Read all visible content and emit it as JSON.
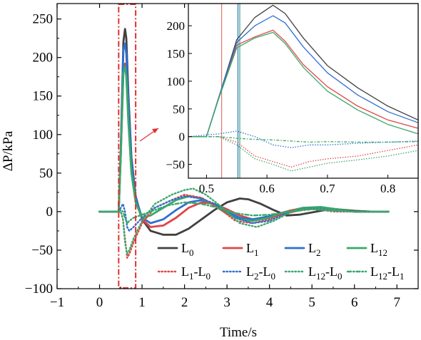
{
  "chart_data": {
    "type": "line",
    "xlabel": "Time/s",
    "ylabel": "ΔP/kPa",
    "xlim": [
      -1,
      7.5
    ],
    "ylim": [
      -100,
      270
    ],
    "xticks": [
      -1,
      0,
      1,
      2,
      3,
      4,
      5,
      6,
      7
    ],
    "yticks": [
      -100,
      -50,
      0,
      50,
      100,
      150,
      200,
      250
    ],
    "grid": false,
    "legend_position": "bottom-right",
    "highlight_region": {
      "x": [
        0.45,
        0.85
      ],
      "style": "dash-dot",
      "color": "#e03030"
    },
    "series": [
      {
        "name": "L0",
        "name_base": "L",
        "name_sub": "0",
        "color": "#404040",
        "style": "solid",
        "x": [
          0,
          0.45,
          0.5,
          0.56,
          0.6,
          0.63,
          0.68,
          0.75,
          0.85,
          1.0,
          1.2,
          1.5,
          1.8,
          2.1,
          2.4,
          2.7,
          3.0,
          3.3,
          3.5,
          3.8,
          4.1,
          4.4,
          4.7,
          5.0,
          5.3,
          5.6,
          6.0,
          6.4,
          6.8
        ],
        "y": [
          0,
          0,
          80,
          220,
          237,
          225,
          150,
          70,
          20,
          -10,
          -25,
          -30,
          -30,
          -22,
          -10,
          2,
          12,
          17,
          16,
          10,
          2,
          -5,
          -4,
          -1,
          2,
          3,
          1,
          0,
          0
        ]
      },
      {
        "name": "L1",
        "name_base": "L",
        "name_sub": "1",
        "color": "#e04545",
        "style": "solid",
        "x": [
          0,
          0.45,
          0.5,
          0.56,
          0.6,
          0.63,
          0.68,
          0.75,
          0.85,
          1.0,
          1.2,
          1.5,
          1.8,
          2.1,
          2.4,
          2.7,
          3.0,
          3.3,
          3.6,
          4.0,
          4.4,
          4.8,
          5.2,
          5.6,
          6.0,
          6.4,
          6.8
        ],
        "y": [
          0,
          0,
          75,
          185,
          192,
          180,
          120,
          55,
          15,
          -10,
          -20,
          -18,
          -8,
          5,
          12,
          10,
          3,
          -5,
          -10,
          -8,
          -2,
          3,
          4,
          2,
          0,
          0,
          0
        ]
      },
      {
        "name": "L2",
        "name_base": "L",
        "name_sub": "2",
        "color": "#2f6fd0",
        "style": "solid",
        "x": [
          0,
          0.45,
          0.5,
          0.56,
          0.6,
          0.63,
          0.68,
          0.75,
          0.85,
          1.0,
          1.2,
          1.5,
          1.8,
          2.1,
          2.4,
          2.7,
          3.0,
          3.3,
          3.6,
          4.0,
          4.4,
          4.8,
          5.2,
          5.6,
          6.0,
          6.4,
          6.8
        ],
        "y": [
          0,
          0,
          80,
          210,
          218,
          205,
          140,
          65,
          18,
          -8,
          -15,
          -10,
          2,
          12,
          15,
          10,
          0,
          -8,
          -10,
          -6,
          0,
          5,
          5,
          2,
          0,
          0,
          0
        ]
      },
      {
        "name": "L12",
        "name_base": "L",
        "name_sub": "12",
        "color": "#3aa86a",
        "style": "solid",
        "x": [
          0,
          0.45,
          0.5,
          0.56,
          0.6,
          0.63,
          0.68,
          0.75,
          0.85,
          1.0,
          1.2,
          1.5,
          1.8,
          2.1,
          2.4,
          2.7,
          3.0,
          3.3,
          3.6,
          4.0,
          4.4,
          4.8,
          5.2,
          5.6,
          6.0,
          6.4,
          6.8
        ],
        "y": [
          0,
          0,
          75,
          180,
          188,
          175,
          115,
          50,
          12,
          -8,
          -5,
          5,
          15,
          20,
          17,
          8,
          -3,
          -10,
          -12,
          -8,
          0,
          5,
          6,
          3,
          0,
          0,
          0
        ]
      },
      {
        "name": "L1-L0",
        "name_base": "L",
        "name_sub": "1",
        "name_base2": "-L",
        "name_sub2": "0",
        "color": "#e04545",
        "style": "dotted",
        "x": [
          0,
          0.45,
          0.5,
          0.55,
          0.6,
          0.65,
          0.7,
          0.8,
          1.0,
          1.3,
          1.7,
          2.0,
          2.4,
          2.8,
          3.2,
          3.6,
          4.0,
          4.5,
          5.0,
          5.5,
          6.0,
          6.5,
          6.8
        ],
        "y": [
          0,
          0,
          0,
          -10,
          -35,
          -60,
          -55,
          -40,
          -15,
          5,
          15,
          22,
          18,
          5,
          -12,
          -15,
          -10,
          2,
          4,
          0,
          0,
          0,
          0
        ]
      },
      {
        "name": "L2-L0",
        "name_base": "L",
        "name_sub": "2",
        "name_base2": "-L",
        "name_sub2": "0",
        "color": "#2f6fd0",
        "style": "dotted",
        "x": [
          0,
          0.45,
          0.5,
          0.55,
          0.6,
          0.65,
          0.7,
          0.8,
          1.0,
          1.3,
          1.7,
          2.0,
          2.4,
          2.8,
          3.2,
          3.6,
          4.0,
          4.5,
          5.0,
          5.5,
          6.0,
          6.5,
          6.8
        ],
        "y": [
          0,
          0,
          5,
          10,
          0,
          -20,
          -25,
          -20,
          -8,
          5,
          15,
          20,
          17,
          8,
          -8,
          -15,
          -12,
          0,
          5,
          2,
          0,
          0,
          0
        ]
      },
      {
        "name": "L12-L0",
        "name_base": "L",
        "name_sub": "12",
        "name_base2": "-L",
        "name_sub2": "0",
        "color": "#3aa86a",
        "style": "dotted",
        "x": [
          0,
          0.45,
          0.5,
          0.55,
          0.6,
          0.65,
          0.7,
          0.8,
          1.0,
          1.3,
          1.7,
          2.0,
          2.2,
          2.5,
          2.9,
          3.3,
          3.7,
          4.1,
          4.6,
          5.0,
          5.5,
          6.0,
          6.5,
          6.8
        ],
        "y": [
          0,
          0,
          0,
          -10,
          -40,
          -55,
          -50,
          -35,
          -12,
          10,
          22,
          28,
          30,
          22,
          5,
          -15,
          -20,
          -12,
          2,
          5,
          2,
          0,
          0,
          0
        ]
      },
      {
        "name": "L12-L1",
        "name_base": "L",
        "name_sub": "12",
        "name_base2": "-L",
        "name_sub2": "1",
        "color": "#3aa86a",
        "style": "dashdot",
        "x": [
          0,
          0.45,
          0.5,
          0.55,
          0.6,
          0.65,
          0.7,
          0.8,
          1.0,
          1.3,
          1.6,
          2.0,
          2.4,
          2.8,
          3.2,
          3.6,
          4.0,
          4.5,
          5.0,
          5.5,
          6.0,
          6.5,
          6.8
        ],
        "y": [
          0,
          0,
          2,
          0,
          -8,
          -15,
          -12,
          -8,
          -4,
          2,
          8,
          12,
          10,
          5,
          -2,
          -5,
          -4,
          0,
          3,
          1,
          0,
          0,
          0
        ]
      }
    ],
    "inset": {
      "xlim": [
        0.47,
        0.85
      ],
      "ylim": [
        -75,
        240
      ],
      "xticks": [
        0.5,
        0.6,
        0.7,
        0.8
      ],
      "xtick_labels": [
        "0.5",
        "0.6",
        "0.7",
        "0.8"
      ],
      "yticks": [
        -50,
        0,
        50,
        100,
        150,
        200
      ],
      "vlines": [
        {
          "x": 0.525,
          "color": "#e07a6a"
        },
        {
          "x": 0.552,
          "color": "#2f6fd0"
        },
        {
          "x": 0.555,
          "color": "#3aa86a"
        }
      ],
      "series": [
        {
          "name": "L0",
          "color": "#404040",
          "style": "solid",
          "x": [
            0.47,
            0.5,
            0.52,
            0.55,
            0.58,
            0.61,
            0.63,
            0.66,
            0.7,
            0.75,
            0.8,
            0.85
          ],
          "y": [
            0,
            0,
            70,
            175,
            215,
            237,
            222,
            178,
            128,
            88,
            55,
            30
          ]
        },
        {
          "name": "L1",
          "color": "#e04545",
          "style": "solid",
          "x": [
            0.47,
            0.5,
            0.52,
            0.55,
            0.58,
            0.61,
            0.63,
            0.66,
            0.7,
            0.75,
            0.8,
            0.85
          ],
          "y": [
            0,
            0,
            70,
            165,
            180,
            192,
            172,
            130,
            90,
            55,
            30,
            15
          ]
        },
        {
          "name": "L2",
          "color": "#2f6fd0",
          "style": "solid",
          "x": [
            0.47,
            0.5,
            0.52,
            0.55,
            0.58,
            0.61,
            0.63,
            0.66,
            0.7,
            0.75,
            0.8,
            0.85
          ],
          "y": [
            0,
            0,
            70,
            170,
            200,
            218,
            205,
            162,
            115,
            75,
            45,
            25
          ]
        },
        {
          "name": "L12",
          "color": "#3aa86a",
          "style": "solid",
          "x": [
            0.47,
            0.5,
            0.52,
            0.55,
            0.58,
            0.61,
            0.63,
            0.66,
            0.7,
            0.75,
            0.8,
            0.85
          ],
          "y": [
            0,
            0,
            68,
            160,
            178,
            188,
            168,
            125,
            82,
            48,
            22,
            5
          ]
        },
        {
          "name": "L1-L0",
          "color": "#e04545",
          "style": "dotted",
          "x": [
            0.47,
            0.52,
            0.55,
            0.58,
            0.61,
            0.64,
            0.67,
            0.7,
            0.75,
            0.8,
            0.85
          ],
          "y": [
            0,
            0,
            -10,
            -35,
            -45,
            -55,
            -45,
            -40,
            -35,
            -25,
            -15
          ]
        },
        {
          "name": "L2-L0",
          "color": "#2f6fd0",
          "style": "dotted",
          "x": [
            0.47,
            0.52,
            0.55,
            0.58,
            0.61,
            0.64,
            0.67,
            0.7,
            0.75,
            0.8,
            0.85
          ],
          "y": [
            0,
            5,
            10,
            0,
            -15,
            -20,
            -15,
            -15,
            -12,
            -10,
            -8
          ]
        },
        {
          "name": "L12-L0",
          "color": "#3aa86a",
          "style": "dotted",
          "x": [
            0.47,
            0.52,
            0.55,
            0.58,
            0.61,
            0.64,
            0.67,
            0.7,
            0.75,
            0.8,
            0.85
          ],
          "y": [
            0,
            0,
            -15,
            -40,
            -50,
            -62,
            -55,
            -48,
            -42,
            -35,
            -25
          ]
        },
        {
          "name": "L12-L1",
          "color": "#3aa86a",
          "style": "dashdot",
          "x": [
            0.47,
            0.52,
            0.55,
            0.58,
            0.61,
            0.64,
            0.67,
            0.7,
            0.75,
            0.8,
            0.85
          ],
          "y": [
            0,
            0,
            -3,
            -5,
            -6,
            -8,
            -10,
            -9,
            -10,
            -10,
            -9
          ]
        }
      ]
    }
  }
}
